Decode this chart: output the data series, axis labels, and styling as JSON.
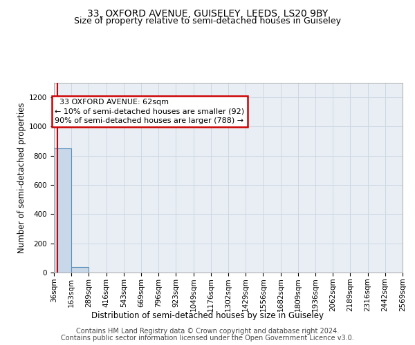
{
  "title": "33, OXFORD AVENUE, GUISELEY, LEEDS, LS20 9BY",
  "subtitle": "Size of property relative to semi-detached houses in Guiseley",
  "xlabel": "Distribution of semi-detached houses by size in Guiseley",
  "ylabel": "Number of semi-detached properties",
  "footer_line1": "Contains HM Land Registry data © Crown copyright and database right 2024.",
  "footer_line2": "Contains public sector information licensed under the Open Government Licence v3.0.",
  "bin_edges": [
    36,
    163,
    289,
    416,
    543,
    669,
    796,
    923,
    1049,
    1176,
    1302,
    1429,
    1556,
    1682,
    1809,
    1936,
    2062,
    2189,
    2316,
    2442,
    2569
  ],
  "bar_heights": [
    850,
    40,
    0,
    0,
    0,
    0,
    0,
    0,
    0,
    0,
    0,
    0,
    0,
    0,
    0,
    0,
    0,
    0,
    0,
    0
  ],
  "bar_color": "#c8d8e8",
  "bar_edge_color": "#5b8db8",
  "property_size": 62,
  "property_label": "33 OXFORD AVENUE: 62sqm",
  "pct_smaller": 10,
  "count_smaller": 92,
  "pct_larger": 90,
  "count_larger": 788,
  "annotation_box_edge_color": "#cc0000",
  "marker_line_color": "#cc0000",
  "ylim": [
    0,
    1300
  ],
  "yticks": [
    0,
    200,
    400,
    600,
    800,
    1000,
    1200
  ],
  "grid_color": "#ccd8e4",
  "bg_color": "#e8eef4",
  "title_fontsize": 10,
  "subtitle_fontsize": 9,
  "axis_label_fontsize": 8.5,
  "tick_fontsize": 7.5,
  "annotation_fontsize": 8,
  "footer_fontsize": 7
}
